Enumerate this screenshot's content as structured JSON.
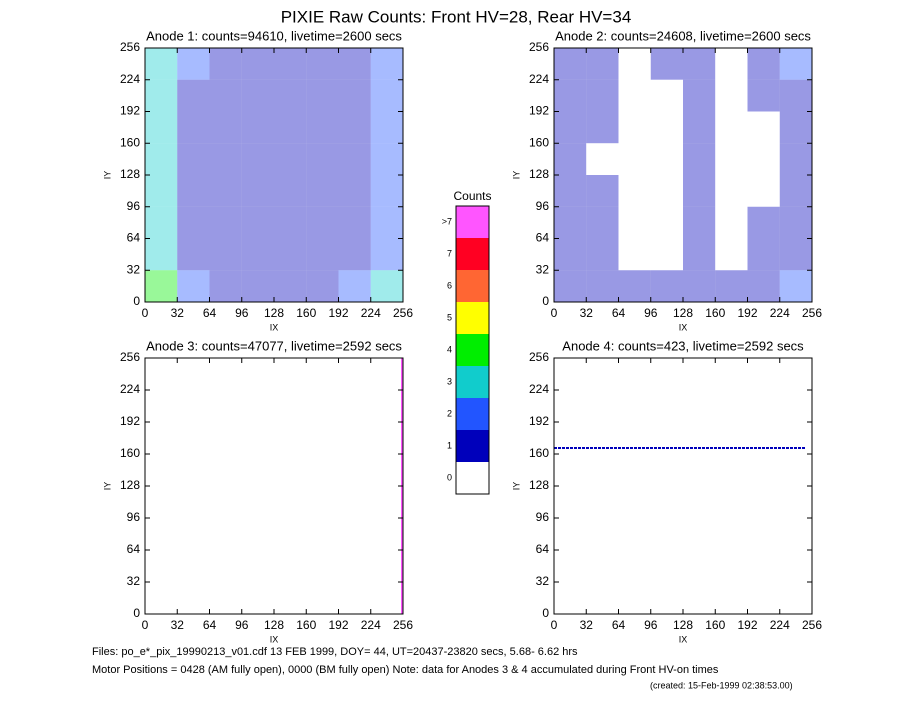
{
  "title": "PIXIE Raw Counts:  Front HV=28, Rear HV=34",
  "footer": [
    "Files: po_e*_pix_19990213_v01.cdf    13 FEB 1999, DOY= 44, UT=20437-23820 secs,  5.68- 6.62 hrs",
    "Motor Positions = 0428 (AM fully open), 0000 (BM fully open)    Note: data for Anodes 3 & 4 accumulated during Front HV-on times",
    "(created: 15-Feb-1999 02:38:53.00)"
  ],
  "chart_data": [
    {
      "type": "heatmap",
      "title": "Anode 1: counts=94610, livetime=2600 secs",
      "x_label": "IX",
      "y_label": "IY",
      "xlim": [
        0,
        256
      ],
      "ylim": [
        0,
        256
      ],
      "xticks": [
        0,
        32,
        64,
        96,
        128,
        160,
        192,
        224,
        256
      ],
      "yticks": [
        0,
        32,
        64,
        96,
        128,
        160,
        192,
        224,
        256
      ],
      "z": [
        [
          3,
          2,
          1,
          1,
          1,
          1,
          1,
          2
        ],
        [
          3,
          1,
          1,
          1,
          1,
          1,
          1,
          2
        ],
        [
          3,
          1,
          1,
          1,
          1,
          1,
          1,
          2
        ],
        [
          3,
          1,
          1,
          1,
          1,
          1,
          1,
          2
        ],
        [
          3,
          1,
          1,
          1,
          1,
          1,
          1,
          2
        ],
        [
          3,
          1,
          1,
          1,
          1,
          1,
          1,
          2
        ],
        [
          3,
          1,
          1,
          1,
          1,
          1,
          1,
          2
        ],
        [
          4,
          2,
          1,
          1,
          1,
          1,
          2,
          3
        ]
      ]
    },
    {
      "type": "heatmap",
      "title": "Anode 2: counts=24608, livetime=2600 secs",
      "x_label": "IX",
      "y_label": "IY",
      "xlim": [
        0,
        256
      ],
      "ylim": [
        0,
        256
      ],
      "xticks": [
        0,
        32,
        64,
        96,
        128,
        160,
        192,
        224,
        256
      ],
      "yticks": [
        0,
        32,
        64,
        96,
        128,
        160,
        192,
        224,
        256
      ],
      "z": [
        [
          1,
          1,
          0,
          1,
          1,
          0,
          1,
          2
        ],
        [
          1,
          1,
          0,
          0,
          1,
          0,
          1,
          1
        ],
        [
          1,
          1,
          0,
          0,
          1,
          0,
          0,
          1
        ],
        [
          1,
          0,
          0,
          0,
          1,
          0,
          0,
          1
        ],
        [
          1,
          1,
          0,
          0,
          1,
          0,
          0,
          1
        ],
        [
          1,
          1,
          0,
          0,
          1,
          0,
          1,
          1
        ],
        [
          1,
          1,
          0,
          0,
          1,
          0,
          1,
          1
        ],
        [
          1,
          1,
          1,
          1,
          1,
          1,
          1,
          2
        ]
      ]
    },
    {
      "type": "heatmap",
      "title": "Anode 3: counts=47077, livetime=2592 secs",
      "x_label": "IX",
      "y_label": "IY",
      "xlim": [
        0,
        256
      ],
      "ylim": [
        0,
        256
      ],
      "xticks": [
        0,
        32,
        64,
        96,
        128,
        160,
        192,
        224,
        256
      ],
      "yticks": [
        0,
        32,
        64,
        96,
        128,
        160,
        192,
        224,
        256
      ],
      "column_x": 255,
      "column_color": "#ff55ff"
    },
    {
      "type": "heatmap",
      "title": "Anode 4: counts=423, livetime=2592 secs",
      "x_label": "IX",
      "y_label": "IY",
      "xlim": [
        0,
        256
      ],
      "ylim": [
        0,
        256
      ],
      "xticks": [
        0,
        32,
        64,
        96,
        128,
        160,
        192,
        224,
        256
      ],
      "yticks": [
        0,
        32,
        64,
        96,
        128,
        160,
        192,
        224,
        256
      ],
      "row_y": 166,
      "row_color": "#0000bb"
    },
    {
      "type": "colorbar",
      "title": "Counts",
      "labels": [
        "0",
        "1",
        "2",
        "3",
        "4",
        "5",
        "6",
        "7",
        ">7"
      ],
      "colors": [
        "#ffffff",
        "#0000bb",
        "#2255ff",
        "#11cccc",
        "#00ee00",
        "#ffff00",
        "#ff6633",
        "#ff0022",
        "#ff55ff"
      ]
    }
  ]
}
